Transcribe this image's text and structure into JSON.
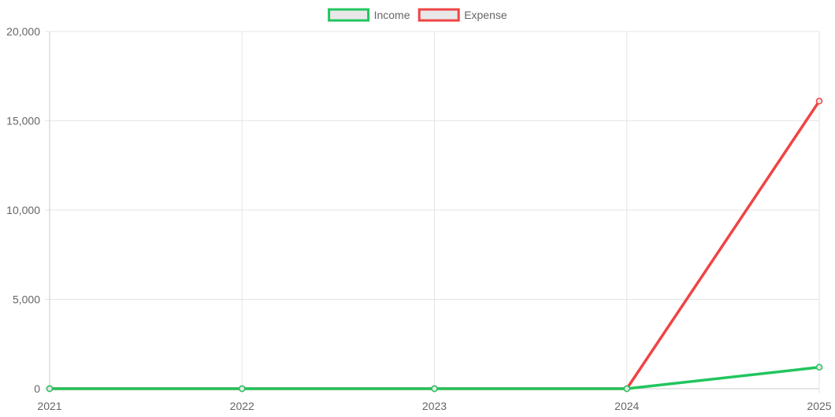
{
  "chart_data": {
    "type": "line",
    "categories": [
      "2021",
      "2022",
      "2023",
      "2024",
      "2025"
    ],
    "series": [
      {
        "name": "Income",
        "values": [
          0,
          0,
          0,
          0,
          1200
        ],
        "color": "#22c55e"
      },
      {
        "name": "Expense",
        "values": [
          0,
          0,
          0,
          0,
          16100
        ],
        "color": "#ef4444"
      }
    ],
    "ylim": [
      0,
      20000
    ],
    "y_ticks": [
      "0",
      "5,000",
      "10,000",
      "15,000",
      "20,000"
    ],
    "y_tick_values": [
      0,
      5000,
      10000,
      15000,
      20000
    ],
    "grid": true,
    "legend_position": "top"
  }
}
